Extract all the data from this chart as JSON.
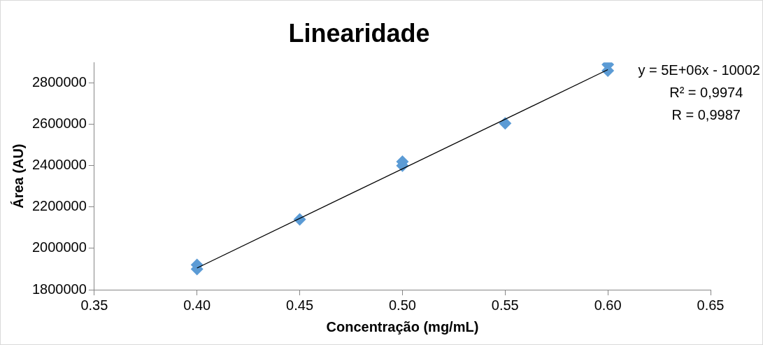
{
  "chart_data": {
    "type": "scatter",
    "title": "Linearidade",
    "xlabel": "Concentração (mg/mL)",
    "ylabel": "Área (AU)",
    "series": [
      {
        "color": "#5b9bd5",
        "x": [
          0.4,
          0.4,
          0.45,
          0.5,
          0.5,
          0.55,
          0.6,
          0.6
        ],
        "values": [
          1920000,
          1900000,
          2140000,
          2420000,
          2400000,
          2605000,
          2890000,
          2860000
        ]
      },
      {
        "type": "line",
        "marker": "none",
        "color": "#000000",
        "x": [
          0.4,
          0.6
        ],
        "values": [
          1905000,
          2865000
        ]
      }
    ],
    "xlim": [
      0.35,
      0.65
    ],
    "xticks": [
      {
        "value": 0.35,
        "label": "0.35"
      },
      {
        "value": 0.4,
        "label": "0.40"
      },
      {
        "value": 0.45,
        "label": "0.45"
      },
      {
        "value": 0.5,
        "label": "0.50"
      },
      {
        "value": 0.55,
        "label": "0.55"
      },
      {
        "value": 0.6,
        "label": "0.60"
      },
      {
        "value": 0.65,
        "label": "0.65"
      }
    ],
    "ylim": [
      1800000,
      2900000
    ],
    "yticks": [
      1800000,
      2000000,
      2200000,
      2400000,
      2600000,
      2800000
    ],
    "annotations": [
      "y = 5E+06x - 10002",
      "R² = 0,9974",
      "R = 0,9987"
    ],
    "marker": "diamond",
    "grid": false,
    "legend": false
  }
}
